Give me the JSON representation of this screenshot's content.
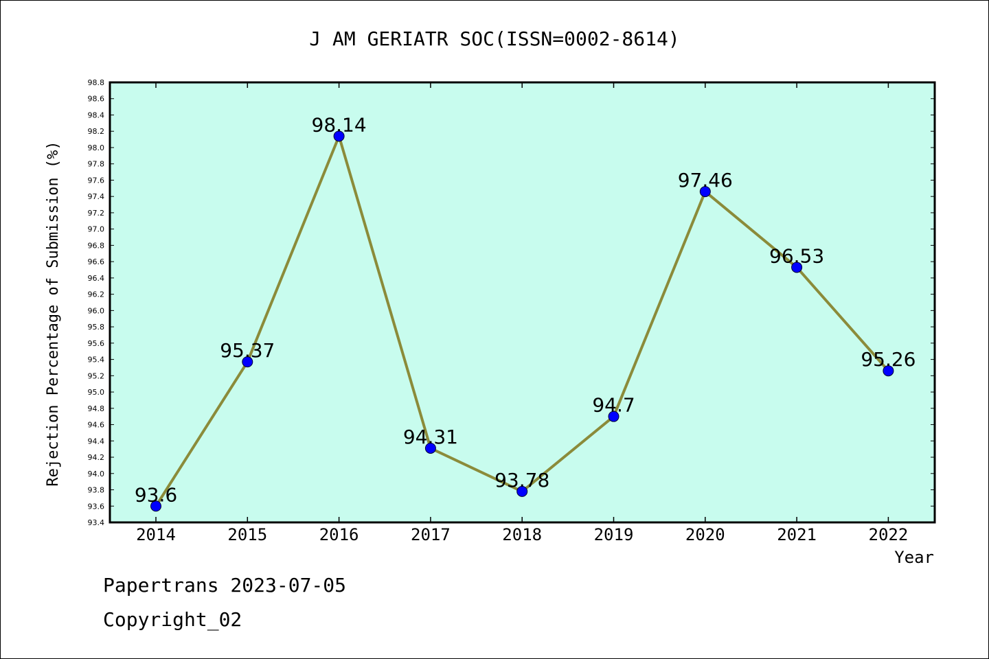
{
  "chart_data": {
    "type": "line",
    "title": "J AM GERIATR SOC(ISSN=0002-8614)",
    "xlabel": "Year",
    "ylabel": "Rejection Percentage of Submission (%)",
    "categories": [
      "2014",
      "2015",
      "2016",
      "2017",
      "2018",
      "2019",
      "2020",
      "2021",
      "2022"
    ],
    "values": [
      93.6,
      95.37,
      98.14,
      94.31,
      93.78,
      94.7,
      97.46,
      96.53,
      95.26
    ],
    "data_labels": [
      "93.6",
      "95.37",
      "98.14",
      "94.31",
      "93.78",
      "94.7",
      "97.46",
      "96.53",
      "95.26"
    ],
    "ylim": [
      93.4,
      98.8
    ],
    "yticks": [
      "93.4",
      "93.6",
      "93.8",
      "94.0",
      "94.2",
      "94.4",
      "94.6",
      "94.8",
      "95.0",
      "95.2",
      "95.4",
      "95.6",
      "95.8",
      "96.0",
      "96.2",
      "96.4",
      "96.6",
      "96.8",
      "97.0",
      "97.2",
      "97.4",
      "97.6",
      "97.8",
      "98.0",
      "98.2",
      "98.4",
      "98.6",
      "98.8"
    ],
    "grid": false,
    "colors": {
      "plot_background": "#c8fcee",
      "line": "#8b8b3a",
      "marker": "#0000ff"
    }
  },
  "footer": {
    "line1": "Papertrans 2023-07-05",
    "line2": "Copyright_02"
  }
}
